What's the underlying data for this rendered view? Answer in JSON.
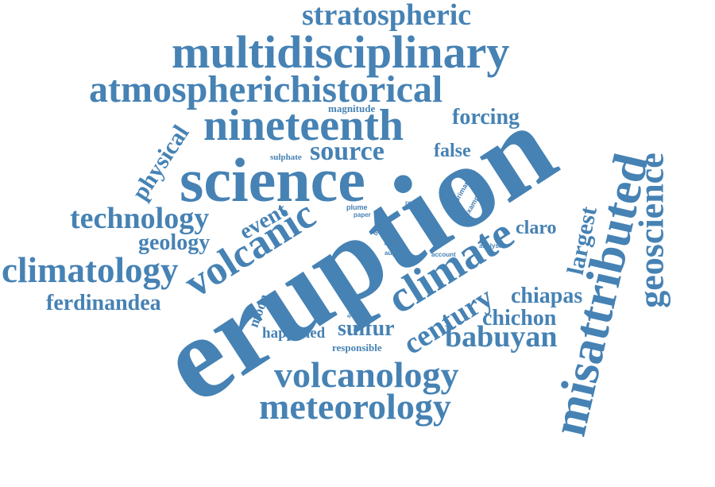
{
  "color": "#4682b4",
  "words": [
    {
      "text": "eruption",
      "rank": 1
    },
    {
      "text": "misattributed",
      "rank": 2
    },
    {
      "text": "science",
      "rank": 3
    },
    {
      "text": "multidisciplinary",
      "rank": 4
    },
    {
      "text": "climate",
      "rank": 5
    },
    {
      "text": "nineteenth",
      "rank": 6
    },
    {
      "text": "atmospherichistorical",
      "rank": 7
    },
    {
      "text": "volcanic",
      "rank": 8
    },
    {
      "text": "geoscience",
      "rank": 9
    },
    {
      "text": "volcanology",
      "rank": 10
    },
    {
      "text": "meteorology",
      "rank": 11
    },
    {
      "text": "climatology",
      "rank": 12
    },
    {
      "text": "stratospheric",
      "rank": 13
    },
    {
      "text": "technology",
      "rank": 14
    },
    {
      "text": "century",
      "rank": 15
    },
    {
      "text": "babuyan",
      "rank": 16
    },
    {
      "text": "source",
      "rank": 17
    },
    {
      "text": "largest",
      "rank": 18
    },
    {
      "text": "physical",
      "rank": 19
    },
    {
      "text": "event",
      "rank": 20
    },
    {
      "text": "geology",
      "rank": 21
    },
    {
      "text": "ferdinandea",
      "rank": 22
    },
    {
      "text": "chiapas",
      "rank": 23
    },
    {
      "text": "chichon",
      "rank": 24
    },
    {
      "text": "forcing",
      "rank": 25
    },
    {
      "text": "sulfur",
      "rank": 26
    },
    {
      "text": "false",
      "rank": 27
    },
    {
      "text": "claro",
      "rank": 28
    },
    {
      "text": "happened",
      "rank": 29
    },
    {
      "text": "moon",
      "rank": 30
    },
    {
      "text": "magnitude",
      "rank": 31
    },
    {
      "text": "responsible",
      "rank": 32
    },
    {
      "text": "sulphate",
      "rank": 33
    },
    {
      "text": "plume",
      "rank": 34
    },
    {
      "text": "paper",
      "rank": 35
    },
    {
      "text": "primary",
      "rank": 36
    },
    {
      "text": "example",
      "rank": 37
    },
    {
      "text": "result",
      "rank": 38
    },
    {
      "text": "sun",
      "rank": 39
    },
    {
      "text": "blue",
      "rank": 40
    },
    {
      "text": "place",
      "rank": 41
    },
    {
      "text": "august",
      "rank": 42
    },
    {
      "text": "analysis",
      "rank": 43
    },
    {
      "text": "account",
      "rank": 44
    },
    {
      "text": "sulfate",
      "rank": 45
    }
  ]
}
